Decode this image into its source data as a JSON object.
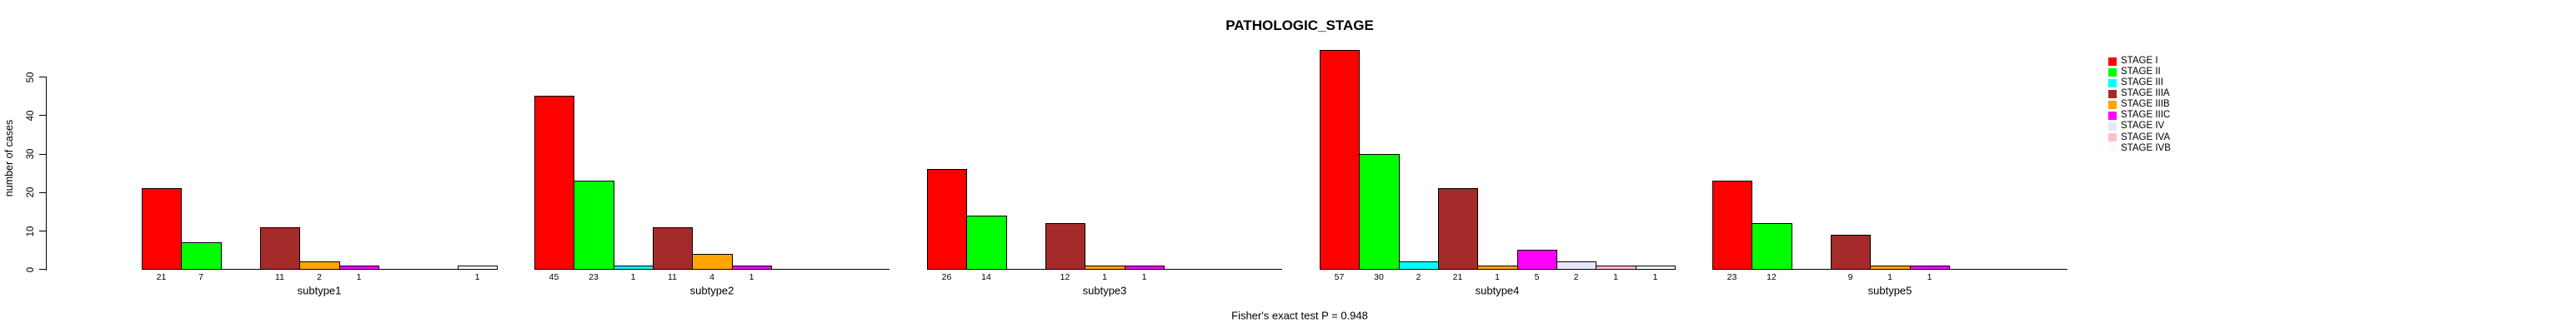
{
  "chart_data": {
    "type": "bar",
    "title": "PATHOLOGIC_STAGE",
    "ylabel": "number of cases",
    "footnote": "Fisher's exact test P = 0.948",
    "yticks": [
      0,
      10,
      20,
      30,
      40,
      50
    ],
    "ylim": [
      0,
      50
    ],
    "grid": false,
    "legend_position": "right",
    "bar_value_labels_shown": true,
    "categories": [
      "subtype1",
      "subtype2",
      "subtype3",
      "subtype4",
      "subtype5"
    ],
    "series": [
      {
        "name": "STAGE I",
        "color": "#FF0000",
        "values": [
          21,
          45,
          26,
          57,
          23
        ]
      },
      {
        "name": "STAGE II",
        "color": "#00FF00",
        "values": [
          7,
          23,
          14,
          30,
          12
        ]
      },
      {
        "name": "STAGE III",
        "color": "#00FFFF",
        "values": [
          0,
          1,
          0,
          2,
          0
        ]
      },
      {
        "name": "STAGE IIIA",
        "color": "#A52A2A",
        "values": [
          11,
          11,
          12,
          21,
          9
        ]
      },
      {
        "name": "STAGE IIIB",
        "color": "#FFA500",
        "values": [
          2,
          4,
          1,
          1,
          1
        ]
      },
      {
        "name": "STAGE IIIC",
        "color": "#FF00FF",
        "values": [
          1,
          1,
          1,
          5,
          1
        ]
      },
      {
        "name": "STAGE IV",
        "color": "#E6E6FA",
        "values": [
          0,
          0,
          0,
          2,
          0
        ]
      },
      {
        "name": "STAGE IVA",
        "color": "#FFC0CB",
        "values": [
          0,
          0,
          0,
          1,
          0
        ]
      },
      {
        "name": "STAGE IVB",
        "color": "#F0FFFF",
        "values": [
          1,
          0,
          0,
          1,
          0
        ]
      }
    ]
  }
}
